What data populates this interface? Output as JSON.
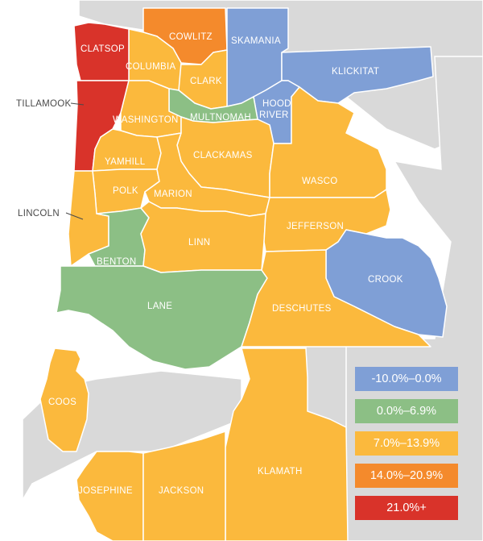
{
  "colors": {
    "neg": "#7f9fd6",
    "low": "#8cbf85",
    "mid": "#fbb93d",
    "high": "#f48a2c",
    "top": "#d9332a",
    "background_land": "#d9d9d9"
  },
  "counties": {
    "clatsop": {
      "name": "CLATSOP",
      "bin": "21.0%+"
    },
    "tillamook": {
      "name": "TILLAMOOK",
      "bin": "21.0%+"
    },
    "cowlitz": {
      "name": "COWLITZ",
      "bin": "14.0%–20.9%"
    },
    "columbia": {
      "name": "COLUMBIA",
      "bin": "7.0%–13.9%"
    },
    "clark": {
      "name": "CLARK",
      "bin": "7.0%–13.9%"
    },
    "skamania": {
      "name": "SKAMANIA",
      "bin": "-10.0%–0.0%"
    },
    "klickitat": {
      "name": "KLICKITAT",
      "bin": "-10.0%–0.0%"
    },
    "hood_river": {
      "name_line1": "HOOD",
      "name_line2": "RIVER",
      "bin": "-10.0%–0.0%"
    },
    "washington": {
      "name": "WASHINGTON",
      "bin": "7.0%–13.9%"
    },
    "multnomah": {
      "name": "MULTNOMAH",
      "bin": "0.0%–6.9%"
    },
    "yamhill": {
      "name": "YAMHILL",
      "bin": "7.0%–13.9%"
    },
    "clackamas": {
      "name": "CLACKAMAS",
      "bin": "7.0%–13.9%"
    },
    "wasco": {
      "name": "WASCO",
      "bin": "7.0%–13.9%"
    },
    "polk": {
      "name": "POLK",
      "bin": "7.0%–13.9%"
    },
    "marion": {
      "name": "MARION",
      "bin": "7.0%–13.9%"
    },
    "lincoln": {
      "name": "LINCOLN",
      "bin": "7.0%–13.9%"
    },
    "jefferson": {
      "name": "JEFFERSON",
      "bin": "7.0%–13.9%"
    },
    "linn": {
      "name": "LINN",
      "bin": "7.0%–13.9%"
    },
    "benton": {
      "name": "BENTON",
      "bin": "0.0%–6.9%"
    },
    "crook": {
      "name": "CROOK",
      "bin": "-10.0%–0.0%"
    },
    "lane": {
      "name": "LANE",
      "bin": "0.0%–6.9%"
    },
    "deschutes": {
      "name": "DESCHUTES",
      "bin": "7.0%–13.9%"
    },
    "coos": {
      "name": "COOS",
      "bin": "7.0%–13.9%"
    },
    "klamath": {
      "name": "KLAMATH",
      "bin": "7.0%–13.9%"
    },
    "josephine": {
      "name": "JOSEPHINE",
      "bin": "7.0%–13.9%"
    },
    "jackson": {
      "name": "JACKSON",
      "bin": "7.0%–13.9%"
    }
  },
  "legend": [
    {
      "label": "-10.0%–0.0%",
      "color": "#7f9fd6"
    },
    {
      "label": "0.0%–6.9%",
      "color": "#8cbf85"
    },
    {
      "label": "7.0%–13.9%",
      "color": "#fbb93d"
    },
    {
      "label": "14.0%–20.9%",
      "color": "#f48a2c"
    },
    {
      "label": "21.0%+",
      "color": "#d9332a"
    }
  ]
}
